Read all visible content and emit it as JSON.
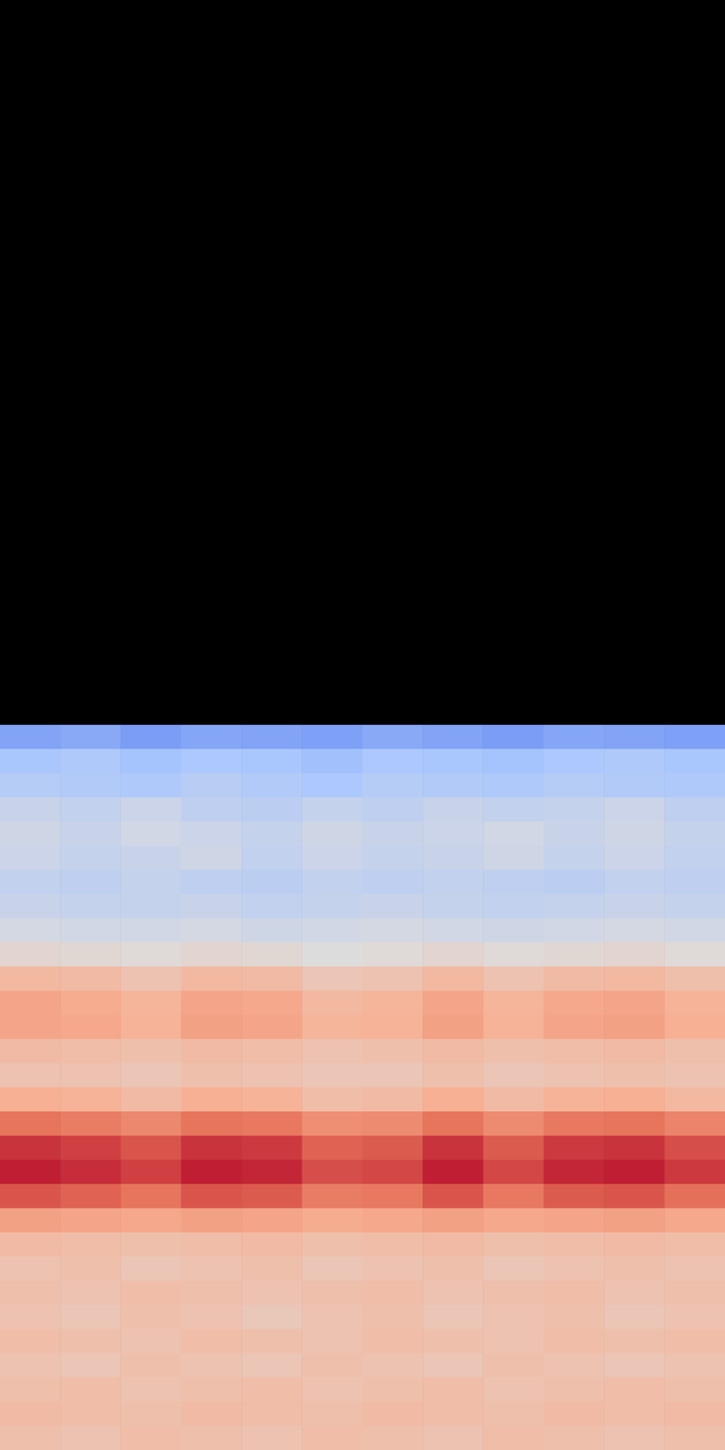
{
  "chart_data": {
    "type": "heatmap",
    "tick_labels": false,
    "color_range": [
      0,
      1
    ],
    "cells": [
      [
        0.22,
        0.24,
        0.2,
        0.23,
        0.22,
        0.21,
        0.24,
        0.22,
        0.2,
        0.23,
        0.22,
        0.21
      ],
      [
        0.33,
        0.35,
        0.32,
        0.34,
        0.33,
        0.31,
        0.34,
        0.33,
        0.32,
        0.34,
        0.35,
        0.33
      ],
      [
        0.37,
        0.36,
        0.35,
        0.38,
        0.36,
        0.34,
        0.37,
        0.36,
        0.35,
        0.37,
        0.36,
        0.35
      ],
      [
        0.43,
        0.41,
        0.44,
        0.4,
        0.39,
        0.42,
        0.4,
        0.43,
        0.41,
        0.42,
        0.44,
        0.4
      ],
      [
        0.45,
        0.43,
        0.46,
        0.44,
        0.42,
        0.45,
        0.43,
        0.44,
        0.46,
        0.43,
        0.45,
        0.42
      ],
      [
        0.44,
        0.42,
        0.43,
        0.45,
        0.41,
        0.44,
        0.42,
        0.43,
        0.45,
        0.42,
        0.44,
        0.41
      ],
      [
        0.41,
        0.4,
        0.42,
        0.4,
        0.39,
        0.41,
        0.4,
        0.41,
        0.4,
        0.39,
        0.41,
        0.4
      ],
      [
        0.43,
        0.42,
        0.42,
        0.43,
        0.41,
        0.42,
        0.43,
        0.42,
        0.41,
        0.42,
        0.43,
        0.42
      ],
      [
        0.47,
        0.46,
        0.46,
        0.47,
        0.45,
        0.46,
        0.47,
        0.46,
        0.45,
        0.46,
        0.47,
        0.46
      ],
      [
        0.53,
        0.52,
        0.51,
        0.53,
        0.52,
        0.5,
        0.51,
        0.53,
        0.51,
        0.52,
        0.53,
        0.51
      ],
      [
        0.64,
        0.63,
        0.6,
        0.64,
        0.63,
        0.59,
        0.6,
        0.64,
        0.6,
        0.63,
        0.64,
        0.61
      ],
      [
        0.7,
        0.68,
        0.65,
        0.7,
        0.69,
        0.64,
        0.65,
        0.7,
        0.65,
        0.69,
        0.7,
        0.66
      ],
      [
        0.7,
        0.69,
        0.66,
        0.71,
        0.7,
        0.65,
        0.66,
        0.71,
        0.66,
        0.7,
        0.71,
        0.67
      ],
      [
        0.63,
        0.62,
        0.61,
        0.63,
        0.62,
        0.6,
        0.61,
        0.63,
        0.61,
        0.62,
        0.63,
        0.61
      ],
      [
        0.6,
        0.6,
        0.59,
        0.61,
        0.6,
        0.59,
        0.59,
        0.61,
        0.59,
        0.6,
        0.61,
        0.6
      ],
      [
        0.67,
        0.66,
        0.63,
        0.67,
        0.66,
        0.62,
        0.63,
        0.67,
        0.63,
        0.66,
        0.67,
        0.64
      ],
      [
        0.83,
        0.81,
        0.78,
        0.83,
        0.82,
        0.76,
        0.77,
        0.83,
        0.77,
        0.82,
        0.83,
        0.79
      ],
      [
        0.93,
        0.91,
        0.88,
        0.93,
        0.92,
        0.86,
        0.87,
        0.93,
        0.87,
        0.92,
        0.93,
        0.89
      ],
      [
        0.96,
        0.94,
        0.91,
        0.96,
        0.95,
        0.89,
        0.9,
        0.96,
        0.9,
        0.95,
        0.96,
        0.92
      ],
      [
        0.88,
        0.86,
        0.83,
        0.88,
        0.87,
        0.81,
        0.82,
        0.88,
        0.82,
        0.87,
        0.88,
        0.84
      ],
      [
        0.71,
        0.7,
        0.69,
        0.71,
        0.7,
        0.68,
        0.69,
        0.71,
        0.69,
        0.7,
        0.71,
        0.69
      ],
      [
        0.63,
        0.62,
        0.61,
        0.62,
        0.63,
        0.61,
        0.62,
        0.63,
        0.61,
        0.62,
        0.63,
        0.62
      ],
      [
        0.6,
        0.61,
        0.59,
        0.6,
        0.61,
        0.59,
        0.6,
        0.61,
        0.59,
        0.6,
        0.61,
        0.6
      ],
      [
        0.61,
        0.6,
        0.62,
        0.61,
        0.6,
        0.61,
        0.62,
        0.6,
        0.61,
        0.62,
        0.6,
        0.61
      ],
      [
        0.6,
        0.59,
        0.61,
        0.6,
        0.58,
        0.6,
        0.61,
        0.59,
        0.6,
        0.61,
        0.59,
        0.6
      ],
      [
        0.62,
        0.61,
        0.6,
        0.62,
        0.61,
        0.6,
        0.62,
        0.61,
        0.6,
        0.62,
        0.61,
        0.62
      ],
      [
        0.6,
        0.59,
        0.61,
        0.6,
        0.59,
        0.61,
        0.6,
        0.59,
        0.61,
        0.6,
        0.59,
        0.6
      ],
      [
        0.61,
        0.62,
        0.6,
        0.61,
        0.62,
        0.6,
        0.61,
        0.62,
        0.6,
        0.61,
        0.62,
        0.61
      ],
      [
        0.63,
        0.62,
        0.61,
        0.63,
        0.62,
        0.61,
        0.63,
        0.62,
        0.61,
        0.63,
        0.62,
        0.63
      ],
      [
        0.61,
        0.6,
        0.62,
        0.61,
        0.6,
        0.62,
        0.61,
        0.6,
        0.62,
        0.61,
        0.6,
        0.61
      ]
    ]
  }
}
